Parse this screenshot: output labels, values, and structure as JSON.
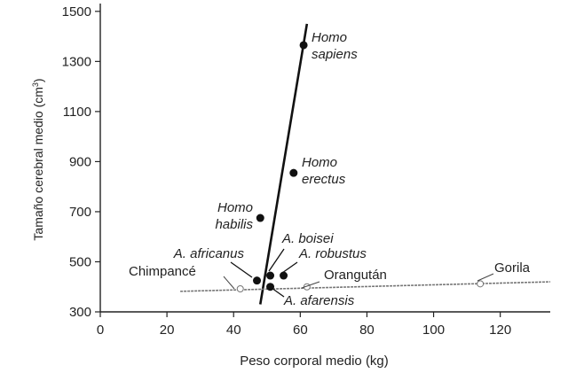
{
  "chart_data": {
    "type": "scatter",
    "xlabel": "Peso corporal medio (kg)",
    "ylabel_main": "Tamaño cerebral medio (cm",
    "ylabel_sup": "3",
    "ylabel_close": ")",
    "xlim": [
      0,
      135
    ],
    "ylim": [
      300,
      1510
    ],
    "x_ticks": [
      0,
      20,
      40,
      60,
      80,
      100,
      120
    ],
    "y_ticks": [
      300,
      500,
      700,
      900,
      1100,
      1300,
      1500
    ],
    "grid": false,
    "hominins": [
      {
        "label_lines": [
          "Homo",
          "sapiens"
        ],
        "italic": true,
        "x": 61,
        "y": 1365
      },
      {
        "label_lines": [
          "Homo",
          "erectus"
        ],
        "italic": true,
        "x": 58,
        "y": 855
      },
      {
        "label_lines": [
          "Homo",
          "habilis"
        ],
        "italic": true,
        "x": 48,
        "y": 675
      },
      {
        "label_lines": [
          "A. boisei"
        ],
        "italic": true,
        "x": 51,
        "y": 445
      },
      {
        "label_lines": [
          "A. robustus"
        ],
        "italic": true,
        "x": 55,
        "y": 445
      },
      {
        "label_lines": [
          "A. africanus"
        ],
        "italic": true,
        "x": 47,
        "y": 425
      },
      {
        "label_lines": [
          "A. afarensis"
        ],
        "italic": true,
        "x": 51,
        "y": 400
      }
    ],
    "apes": [
      {
        "label": "Chimpancé",
        "x": 42,
        "y": 392
      },
      {
        "label": "Orangután",
        "x": 62,
        "y": 400
      },
      {
        "label": "Gorila",
        "x": 114,
        "y": 412
      }
    ],
    "hominin_trend": {
      "x": [
        48,
        62
      ],
      "y": [
        330,
        1450
      ]
    },
    "ape_trend": {
      "x": [
        24,
        135
      ],
      "y": [
        382,
        420
      ]
    }
  }
}
